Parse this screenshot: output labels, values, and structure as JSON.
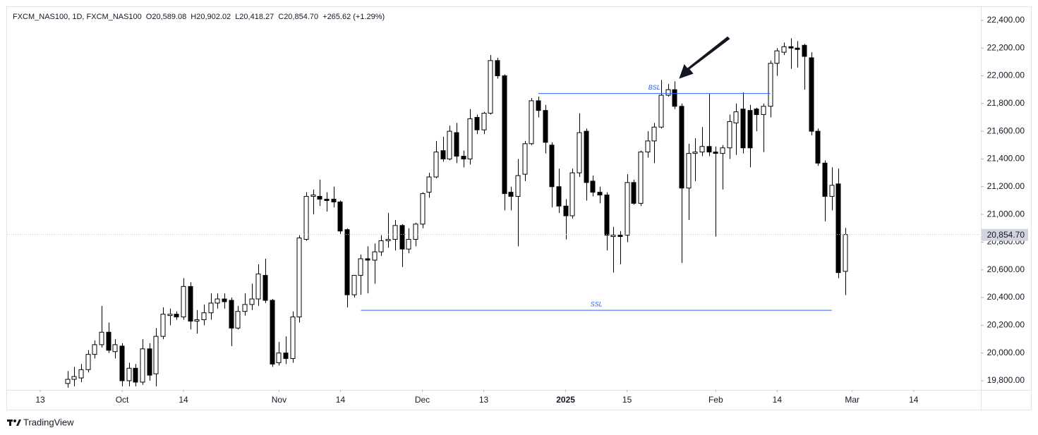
{
  "header": {
    "symbol": "FXCM_NAS100, 1D, FXCM_NAS100",
    "open": "O20,589.08",
    "high": "H20,902.02",
    "low": "L20,418.27",
    "close": "C20,854.70",
    "change": "+265.62 (+1.29%)"
  },
  "footer": {
    "brand": "TradingView"
  },
  "chart_data": {
    "type": "candlestick",
    "up_color": "#ffffff",
    "down_color": "#000000",
    "border_color": "#000000",
    "x": [
      4,
      5,
      6,
      7,
      8,
      9,
      10,
      11,
      12,
      13,
      14,
      15,
      16,
      17,
      18,
      19,
      20,
      21,
      22,
      23,
      24,
      25,
      26,
      27,
      28,
      29,
      30,
      31,
      32,
      33,
      34,
      35,
      36,
      37,
      38,
      39,
      40,
      41,
      42,
      43,
      44,
      45,
      46,
      47,
      48,
      49,
      50,
      51,
      52,
      53,
      54,
      55,
      56,
      57,
      58,
      59,
      60,
      61,
      62,
      63,
      64,
      65,
      66,
      67,
      68,
      69,
      70,
      71,
      72,
      73,
      74,
      75,
      76,
      77,
      78,
      79,
      80,
      81,
      82,
      83,
      84,
      85,
      86,
      87,
      88,
      89,
      90,
      91,
      92,
      93,
      94,
      95,
      96,
      97,
      98,
      99,
      100,
      101,
      102,
      103,
      104,
      105,
      106,
      107,
      108,
      109,
      110,
      111,
      112,
      113,
      114,
      115,
      116,
      117,
      118
    ],
    "open": [
      19780,
      19810,
      19820,
      19880,
      19990,
      20060,
      20150,
      20010,
      20050,
      19800,
      19890,
      19790,
      20030,
      19850,
      20120,
      20270,
      20280,
      20260,
      20480,
      20230,
      20240,
      20290,
      20360,
      20390,
      20380,
      20180,
      20300,
      20350,
      20390,
      20560,
      20380,
      19930,
      20000,
      19960,
      20260,
      20820,
      21130,
      21130,
      21110,
      21110,
      21090,
      20890,
      20420,
      20560,
      20680,
      20670,
      20730,
      20810,
      20820,
      20920,
      20750,
      20820,
      20930,
      21160,
      21270,
      21460,
      21400,
      21590,
      21420,
      21400,
      21700,
      21610,
      21730,
      22110,
      22000,
      21160,
      21130,
      21290,
      21510,
      21820,
      21750,
      21500,
      21200,
      21060,
      20990,
      21300,
      21600,
      21240,
      21160,
      21140,
      20840,
      20850,
      20850,
      21230,
      21080,
      21450,
      21530,
      21630,
      21860,
      21900,
      21780,
      21190,
      21440,
      21450,
      21490,
      21450,
      21440,
      21480,
      21660,
      21760,
      21750,
      21760,
      21720,
      21780,
      22090,
      22170,
      22210,
      22200,
      22220,
      22130,
      21600,
      21370,
      21130,
      21220,
      20589.08
    ],
    "high": [
      19870,
      19900,
      19920,
      20020,
      20090,
      20340,
      20220,
      20100,
      20070,
      19930,
      19920,
      20100,
      20070,
      20180,
      20330,
      20320,
      20300,
      20540,
      20510,
      20310,
      20350,
      20430,
      20430,
      20430,
      20400,
      20340,
      20430,
      20500,
      20640,
      20680,
      20390,
      20080,
      20120,
      20300,
      20850,
      21160,
      21180,
      21250,
      21160,
      21200,
      21100,
      20900,
      20560,
      20710,
      20770,
      20790,
      20850,
      21010,
      20960,
      20930,
      20900,
      20940,
      21160,
      21300,
      21530,
      21560,
      21640,
      21660,
      21460,
      21760,
      21720,
      21740,
      22150,
      22130,
      22010,
      21200,
      21400,
      21530,
      21840,
      21850,
      21790,
      21520,
      21330,
      21110,
      21330,
      21730,
      21620,
      21280,
      21200,
      21160,
      20910,
      20880,
      21290,
      21250,
      21460,
      21600,
      21660,
      21970,
      21940,
      21960,
      21800,
      21510,
      21550,
      21630,
      21870,
      21490,
      21500,
      21720,
      21800,
      21880,
      21790,
      21770,
      21800,
      22110,
      22200,
      22240,
      22270,
      22250,
      22230,
      22170,
      21620,
      21390,
      21340,
      21330,
      20902.02
    ],
    "low": [
      19750,
      19760,
      19790,
      19860,
      19960,
      20040,
      20000,
      19960,
      19760,
      19760,
      19760,
      19770,
      19800,
      19760,
      20100,
      20200,
      20240,
      20240,
      20170,
      20140,
      20200,
      20240,
      20320,
      20320,
      20050,
      20170,
      20270,
      20310,
      20340,
      20360,
      19900,
      19910,
      19920,
      19930,
      20220,
      20810,
      21000,
      21060,
      21020,
      21050,
      20860,
      20330,
      20400,
      20420,
      20430,
      20500,
      20700,
      20760,
      20740,
      20620,
      20720,
      20770,
      20900,
      21120,
      21260,
      21380,
      21390,
      21370,
      21340,
      21360,
      21580,
      21580,
      21720,
      21980,
      21030,
      21030,
      20770,
      21240,
      21500,
      21700,
      21440,
      21050,
      21010,
      20820,
      20970,
      21270,
      21100,
      21130,
      21080,
      20740,
      20580,
      20640,
      20800,
      21070,
      21060,
      21410,
      21370,
      21620,
      21850,
      21760,
      20650,
      20960,
      21240,
      21420,
      21420,
      20840,
      21180,
      21400,
      21430,
      21440,
      21340,
      21600,
      21450,
      21700,
      22000,
      22150,
      22050,
      22060,
      21900,
      21570,
      21350,
      20950,
      21030,
      20540,
      20418.27
    ],
    "close": [
      19810,
      19830,
      19880,
      19990,
      20060,
      20150,
      20020,
      20060,
      19800,
      19890,
      19790,
      20030,
      19840,
      20120,
      20280,
      20280,
      20260,
      20480,
      20230,
      20240,
      20290,
      20360,
      20390,
      20370,
      20180,
      20300,
      20350,
      20390,
      20570,
      20380,
      19920,
      20000,
      19960,
      20260,
      20830,
      21130,
      21140,
      21110,
      21100,
      21090,
      20880,
      20420,
      20560,
      20680,
      20670,
      20730,
      20810,
      20820,
      20920,
      20750,
      20820,
      20930,
      21150,
      21270,
      21450,
      21400,
      21600,
      21420,
      21400,
      21690,
      21610,
      21730,
      22110,
      22000,
      21150,
      21130,
      21280,
      21510,
      21820,
      21750,
      21520,
      21200,
      21060,
      20990,
      21300,
      21590,
      21230,
      21160,
      21140,
      20850,
      20850,
      20840,
      21230,
      21080,
      21450,
      21530,
      21630,
      21860,
      21900,
      21780,
      21190,
      21440,
      21450,
      21490,
      21450,
      21440,
      21480,
      21670,
      21740,
      21480,
      21480,
      21720,
      21780,
      22090,
      22180,
      22210,
      22200,
      22190,
      22140,
      21600,
      21370,
      21130,
      21210,
      20580,
      20854.7
    ],
    "xlim": [
      -4.86,
      137.85
    ],
    "xticks": [
      {
        "value": 0,
        "label": "13"
      },
      {
        "value": 12,
        "label": "Oct"
      },
      {
        "value": 21,
        "label": "14"
      },
      {
        "value": 35,
        "label": "Nov"
      },
      {
        "value": 44,
        "label": "14"
      },
      {
        "value": 56,
        "label": "Dec"
      },
      {
        "value": 65,
        "label": "13"
      },
      {
        "value": 77,
        "label": "2025"
      },
      {
        "value": 86,
        "label": "15"
      },
      {
        "value": 99,
        "label": "Feb"
      },
      {
        "value": 108,
        "label": "14"
      },
      {
        "value": 119,
        "label": "Mar"
      },
      {
        "value": 128,
        "label": "14"
      }
    ],
    "ylim": [
      19739,
      22496
    ],
    "yticks": [
      {
        "value": 19800,
        "label": "19,800.00"
      },
      {
        "value": 20000,
        "label": "20,000.00"
      },
      {
        "value": 20200,
        "label": "20,200.00"
      },
      {
        "value": 20400,
        "label": "20,400.00"
      },
      {
        "value": 20600,
        "label": "20,600.00"
      },
      {
        "value": 20800,
        "label": "20,800.00"
      },
      {
        "value": 21000,
        "label": "21,000.00"
      },
      {
        "value": 21200,
        "label": "21,200.00"
      },
      {
        "value": 21400,
        "label": "21,400.00"
      },
      {
        "value": 21600,
        "label": "21,600.00"
      },
      {
        "value": 21800,
        "label": "21,800.00"
      },
      {
        "value": 22000,
        "label": "22,000.00"
      },
      {
        "value": 22200,
        "label": "22,200.00"
      },
      {
        "value": 22400,
        "label": "22,400.00"
      }
    ],
    "last_price": {
      "value": 20854.7,
      "label": "20,854.70"
    },
    "annotations": [
      {
        "label": "BSL",
        "y": 21872,
        "x": [
          73,
          107
        ],
        "color": "#2962ff"
      },
      {
        "label": "SSL",
        "y": 20308,
        "x": [
          47,
          116
        ],
        "color": "#2962ff"
      }
    ],
    "grid": false
  }
}
